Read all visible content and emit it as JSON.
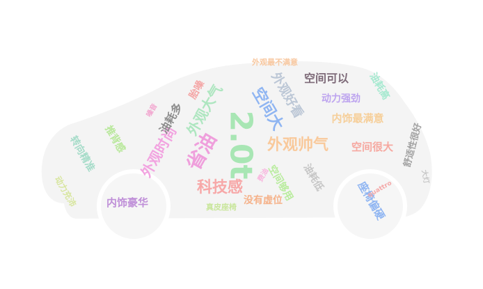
{
  "colors": {
    "car_fill": "#f4f4f4",
    "wheel_fill": "#f6f6f6",
    "wheel_ring": "#ffffff"
  },
  "words": [
    {
      "text": "2.0t",
      "color": "#a8e6b4"
    },
    {
      "text": "省油",
      "color": "#ef9fdc"
    },
    {
      "text": "科技感",
      "color": "#f7a8a8"
    },
    {
      "text": "外观帅气",
      "color": "#f9c99b"
    },
    {
      "text": "空间大",
      "color": "#8fb5f2"
    },
    {
      "text": "外观时尚",
      "color": "#f2a3e0"
    },
    {
      "text": "外观大气",
      "color": "#aee6c0"
    },
    {
      "text": "外观好看",
      "color": "#bcc7d6"
    },
    {
      "text": "空间可以",
      "color": "#7d6a78"
    },
    {
      "text": "动力强劲",
      "color": "#bda4ef"
    },
    {
      "text": "内饰最满意",
      "color": "#f6cf9a"
    },
    {
      "text": "空间很大",
      "color": "#f6a8a0"
    },
    {
      "text": "内饰豪华",
      "color": "#bf8fd8"
    },
    {
      "text": "座椅偏硬",
      "color": "#8fb5f2"
    },
    {
      "text": "油耗多",
      "color": "#8e8e8e"
    },
    {
      "text": "胎噪",
      "color": "#f4a6a6"
    },
    {
      "text": "噪音",
      "color": "#f2a6cf"
    },
    {
      "text": "推背感",
      "color": "#b9e89c"
    },
    {
      "text": "转向精准",
      "color": "#a6dcc9"
    },
    {
      "text": "动力充沛",
      "color": "#d8e6a0"
    },
    {
      "text": "油耗高",
      "color": "#a6e9d0"
    },
    {
      "text": "舒适性很好",
      "color": "#a2a2a2"
    },
    {
      "text": "油耗低",
      "color": "#c6c6c6"
    },
    {
      "text": "空间够用",
      "color": "#b9ec9e"
    },
    {
      "text": "没有虚位",
      "color": "#f5b28a"
    },
    {
      "text": "真皮座椅",
      "color": "#c9e69c"
    },
    {
      "text": "外观最不满意",
      "color": "#f8c8a0"
    },
    {
      "text": "quattro",
      "color": "#f4a8a8"
    },
    {
      "text": "大灯",
      "color": "#c8c8c8"
    },
    {
      "text": "费油",
      "color": "#f8b6de"
    }
  ]
}
